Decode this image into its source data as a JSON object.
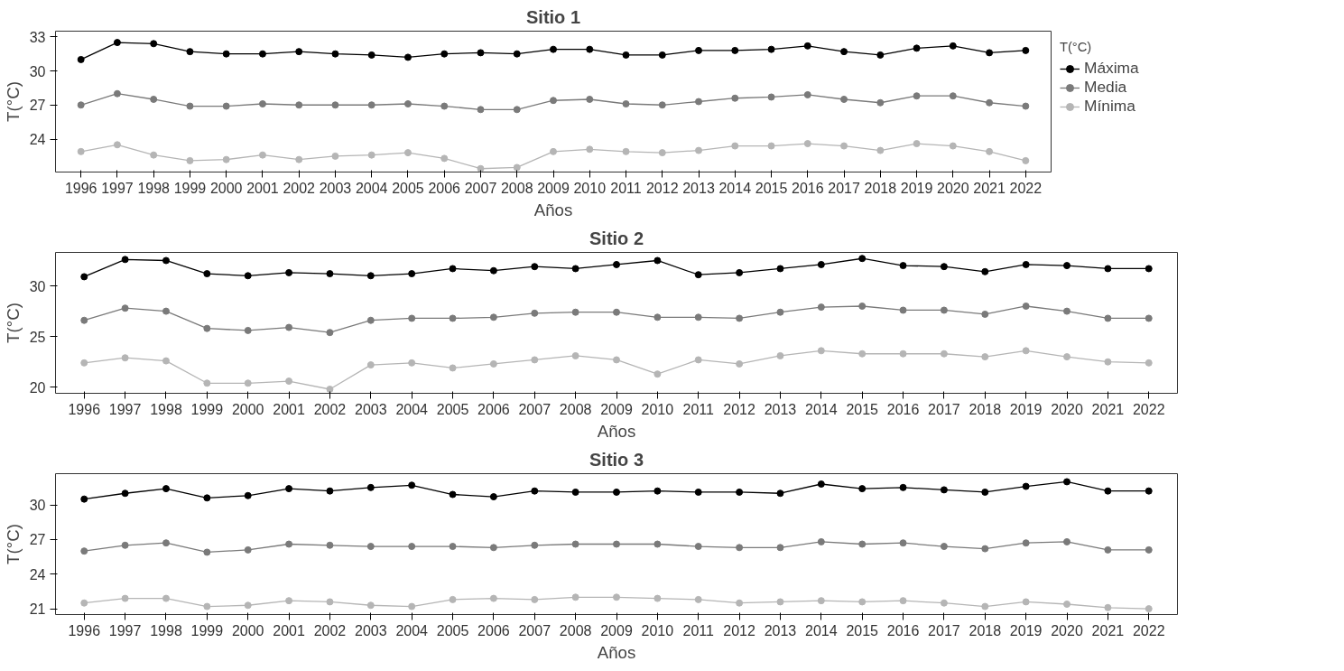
{
  "chart_data": [
    {
      "type": "line",
      "title": "Sitio 1",
      "xlabel": "Años",
      "ylabel": "T(°C)",
      "legend_title": "T(°C)",
      "legend": "right",
      "grid": false,
      "marker": "circle",
      "line_style": "solid",
      "categories": [
        "1996",
        "1997",
        "1998",
        "1999",
        "2000",
        "2001",
        "2002",
        "2003",
        "2004",
        "2005",
        "2006",
        "2007",
        "2008",
        "2009",
        "2010",
        "2011",
        "2012",
        "2013",
        "2014",
        "2015",
        "2016",
        "2017",
        "2018",
        "2019",
        "2020",
        "2021",
        "2022"
      ],
      "ylim": [
        21.1,
        33.5
      ],
      "yticks": [
        24,
        27,
        30,
        33
      ],
      "series": [
        {
          "name": "Máxima",
          "color": "#000000",
          "values": [
            31.0,
            32.5,
            32.4,
            31.7,
            31.5,
            31.5,
            31.7,
            31.5,
            31.4,
            31.2,
            31.5,
            31.6,
            31.5,
            31.9,
            31.9,
            31.4,
            31.4,
            31.8,
            31.8,
            31.9,
            32.2,
            31.7,
            31.4,
            32.0,
            32.2,
            31.6,
            31.8
          ]
        },
        {
          "name": "Media",
          "color": "#7a7a7a",
          "values": [
            27.0,
            28.0,
            27.5,
            26.9,
            26.9,
            27.1,
            27.0,
            27.0,
            27.0,
            27.1,
            26.9,
            26.6,
            26.6,
            27.4,
            27.5,
            27.1,
            27.0,
            27.3,
            27.6,
            27.7,
            27.9,
            27.5,
            27.2,
            27.8,
            27.8,
            27.2,
            26.9
          ]
        },
        {
          "name": "Mínima",
          "color": "#b5b5b5",
          "values": [
            22.9,
            23.5,
            22.6,
            22.1,
            22.2,
            22.6,
            22.2,
            22.5,
            22.6,
            22.8,
            22.3,
            21.4,
            21.5,
            22.9,
            23.1,
            22.9,
            22.8,
            23.0,
            23.4,
            23.4,
            23.6,
            23.4,
            23.0,
            23.6,
            23.4,
            22.9,
            22.1
          ]
        }
      ]
    },
    {
      "type": "line",
      "title": "Sitio 2",
      "xlabel": "Años",
      "ylabel": "T(°C)",
      "legend": false,
      "grid": false,
      "marker": "circle",
      "line_style": "solid",
      "categories": [
        "1996",
        "1997",
        "1998",
        "1999",
        "2000",
        "2001",
        "2002",
        "2003",
        "2004",
        "2005",
        "2006",
        "2007",
        "2008",
        "2009",
        "2010",
        "2011",
        "2012",
        "2013",
        "2014",
        "2015",
        "2016",
        "2017",
        "2018",
        "2019",
        "2020",
        "2021",
        "2022"
      ],
      "ylim": [
        19.4,
        33.3
      ],
      "yticks": [
        20,
        25,
        30
      ],
      "series": [
        {
          "color": "#000000",
          "values": [
            30.9,
            32.6,
            32.5,
            31.2,
            31.0,
            31.3,
            31.2,
            31.0,
            31.2,
            31.7,
            31.5,
            31.9,
            31.7,
            32.1,
            32.5,
            31.1,
            31.3,
            31.7,
            32.1,
            32.7,
            32.0,
            31.9,
            31.4,
            32.1,
            32.0,
            31.7,
            31.7
          ]
        },
        {
          "color": "#7a7a7a",
          "values": [
            26.6,
            27.8,
            27.5,
            25.8,
            25.6,
            25.9,
            25.4,
            26.6,
            26.8,
            26.8,
            26.9,
            27.3,
            27.4,
            27.4,
            26.9,
            26.9,
            26.8,
            27.4,
            27.9,
            28.0,
            27.6,
            27.6,
            27.2,
            28.0,
            27.5,
            26.8,
            26.8
          ]
        },
        {
          "color": "#b5b5b5",
          "values": [
            22.4,
            22.9,
            22.6,
            20.4,
            20.4,
            20.6,
            19.8,
            22.2,
            22.4,
            21.9,
            22.3,
            22.7,
            23.1,
            22.7,
            21.3,
            22.7,
            22.3,
            23.1,
            23.6,
            23.3,
            23.3,
            23.3,
            23.0,
            23.6,
            23.0,
            22.5,
            22.4
          ]
        }
      ]
    },
    {
      "type": "line",
      "title": "Sitio 3",
      "xlabel": "Años",
      "ylabel": "T(°C)",
      "legend": false,
      "grid": false,
      "marker": "circle",
      "line_style": "solid",
      "categories": [
        "1996",
        "1997",
        "1998",
        "1999",
        "2000",
        "2001",
        "2002",
        "2003",
        "2004",
        "2005",
        "2006",
        "2007",
        "2008",
        "2009",
        "2010",
        "2011",
        "2012",
        "2013",
        "2014",
        "2015",
        "2016",
        "2017",
        "2018",
        "2019",
        "2020",
        "2021",
        "2022"
      ],
      "ylim": [
        20.5,
        32.7
      ],
      "yticks": [
        21,
        24,
        27,
        30
      ],
      "series": [
        {
          "color": "#000000",
          "values": [
            30.5,
            31.0,
            31.4,
            30.6,
            30.8,
            31.4,
            31.2,
            31.5,
            31.7,
            30.9,
            30.7,
            31.2,
            31.1,
            31.1,
            31.2,
            31.1,
            31.1,
            31.0,
            31.8,
            31.4,
            31.5,
            31.3,
            31.1,
            31.6,
            32.0,
            31.2,
            31.2
          ]
        },
        {
          "color": "#7a7a7a",
          "values": [
            26.0,
            26.5,
            26.7,
            25.9,
            26.1,
            26.6,
            26.5,
            26.4,
            26.4,
            26.4,
            26.3,
            26.5,
            26.6,
            26.6,
            26.6,
            26.4,
            26.3,
            26.3,
            26.8,
            26.6,
            26.7,
            26.4,
            26.2,
            26.7,
            26.8,
            26.1,
            26.1
          ]
        },
        {
          "color": "#b5b5b5",
          "values": [
            21.5,
            21.9,
            21.9,
            21.2,
            21.3,
            21.7,
            21.6,
            21.3,
            21.2,
            21.8,
            21.9,
            21.8,
            22.0,
            22.0,
            21.9,
            21.8,
            21.5,
            21.6,
            21.7,
            21.6,
            21.7,
            21.5,
            21.2,
            21.6,
            21.4,
            21.1,
            21.0
          ]
        }
      ]
    }
  ]
}
